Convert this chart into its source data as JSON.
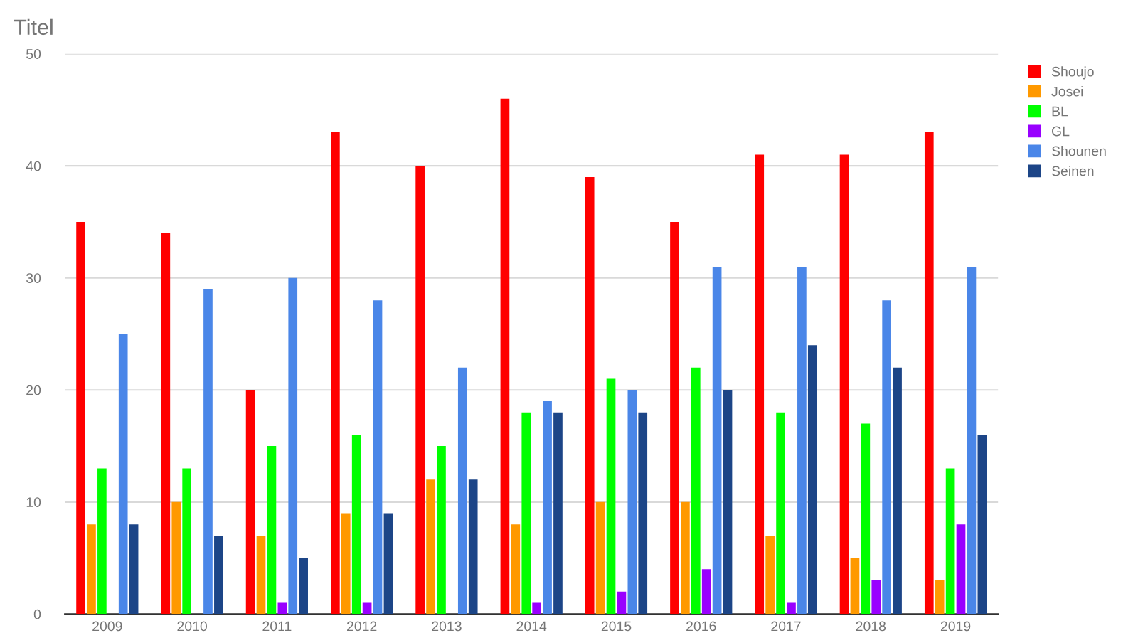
{
  "chart_data": {
    "type": "bar",
    "title": "Titel",
    "categories": [
      "2009",
      "2010",
      "2011",
      "2012",
      "2013",
      "2014",
      "2015",
      "2016",
      "2017",
      "2018",
      "2019"
    ],
    "series": [
      {
        "name": "Shoujo",
        "color": "#ff0000",
        "values": [
          35,
          34,
          20,
          43,
          40,
          46,
          39,
          35,
          41,
          41,
          43
        ]
      },
      {
        "name": "Josei",
        "color": "#ff9900",
        "values": [
          8,
          10,
          7,
          9,
          12,
          8,
          10,
          10,
          7,
          5,
          3
        ]
      },
      {
        "name": "BL",
        "color": "#00ff00",
        "values": [
          13,
          13,
          15,
          16,
          15,
          18,
          21,
          22,
          18,
          17,
          13
        ]
      },
      {
        "name": "GL",
        "color": "#9900ff",
        "values": [
          0,
          0,
          1,
          1,
          0,
          1,
          2,
          4,
          1,
          3,
          8
        ]
      },
      {
        "name": "Shounen",
        "color": "#4a86e8",
        "values": [
          25,
          29,
          30,
          28,
          22,
          19,
          20,
          31,
          31,
          28,
          31
        ]
      },
      {
        "name": "Seinen",
        "color": "#1c4587",
        "values": [
          8,
          7,
          5,
          9,
          12,
          18,
          18,
          20,
          24,
          22,
          16
        ]
      }
    ],
    "ylim": [
      0,
      50
    ],
    "yticks": [
      0,
      10,
      20,
      30,
      40,
      50
    ],
    "grid": "y",
    "legend": "right"
  }
}
